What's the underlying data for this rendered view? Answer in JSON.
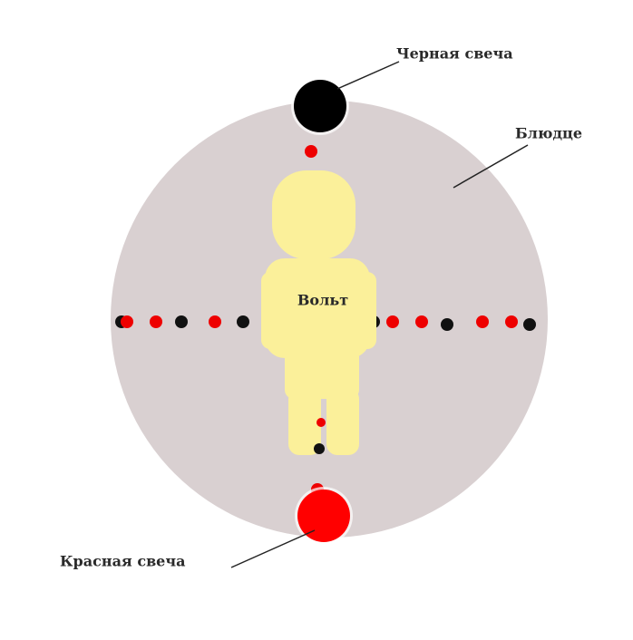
{
  "labels": {
    "black_candle": "Черная свеча",
    "saucer": "Блюдце",
    "person": "Вольт",
    "red_candle": "Красная свеча"
  }
}
